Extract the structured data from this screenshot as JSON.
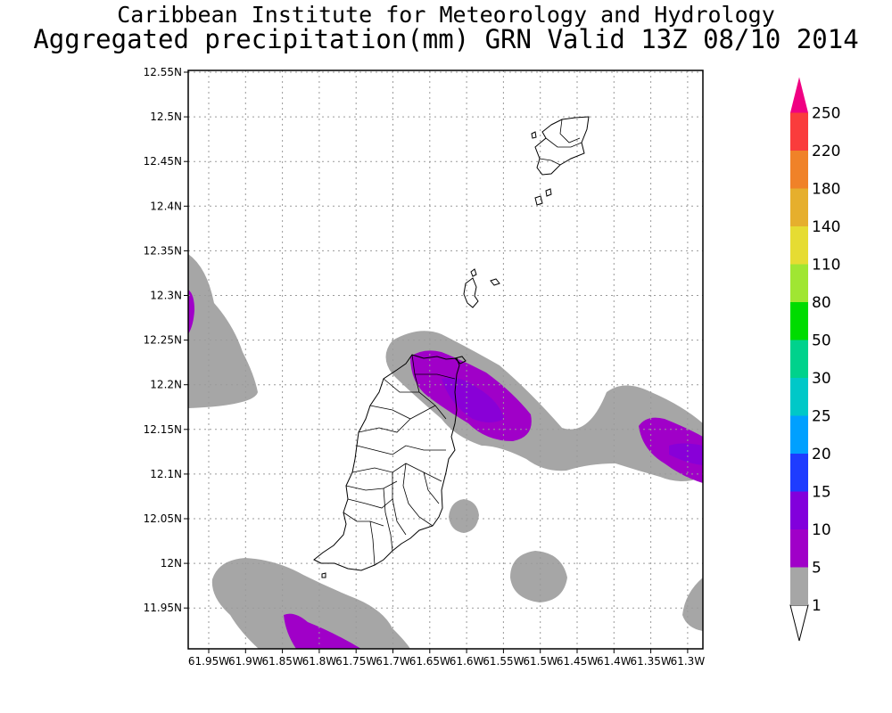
{
  "header": {
    "title_line1": "Caribbean Institute for Meteorology and Hydrology",
    "title_line2": "Aggregated precipitation(mm) GRN Valid 13Z 08/10 2014"
  },
  "map": {
    "lat_ticks": [
      "12.55N",
      "12.5N",
      "12.45N",
      "12.4N",
      "12.35N",
      "12.3N",
      "12.25N",
      "12.2N",
      "12.15N",
      "12.1N",
      "12.05N",
      "12N",
      "11.95N"
    ],
    "lon_ticks": [
      "61.95W",
      "61.9W",
      "61.85W",
      "61.8W",
      "61.75W",
      "61.7W",
      "61.65W",
      "61.6W",
      "61.55W",
      "61.5W",
      "61.45W",
      "61.4W",
      "61.35W",
      "61.3W"
    ],
    "grid": true,
    "colors": {
      "low_rain": "#a6a6a6",
      "mid_rain": "#a000c8",
      "high_rain": "#8200dc"
    }
  },
  "legend": {
    "levels": [
      "1",
      "5",
      "10",
      "15",
      "20",
      "25",
      "30",
      "50",
      "80",
      "110",
      "140",
      "180",
      "220",
      "250"
    ],
    "colors": [
      "#a6a6a6",
      "#a000c8",
      "#8200dc",
      "#1e3cff",
      "#00a0ff",
      "#00c8c8",
      "#00d28c",
      "#00dc00",
      "#a0e632",
      "#e6dc32",
      "#e6af2d",
      "#f08228",
      "#fa3c3c",
      "#f00082"
    ]
  }
}
